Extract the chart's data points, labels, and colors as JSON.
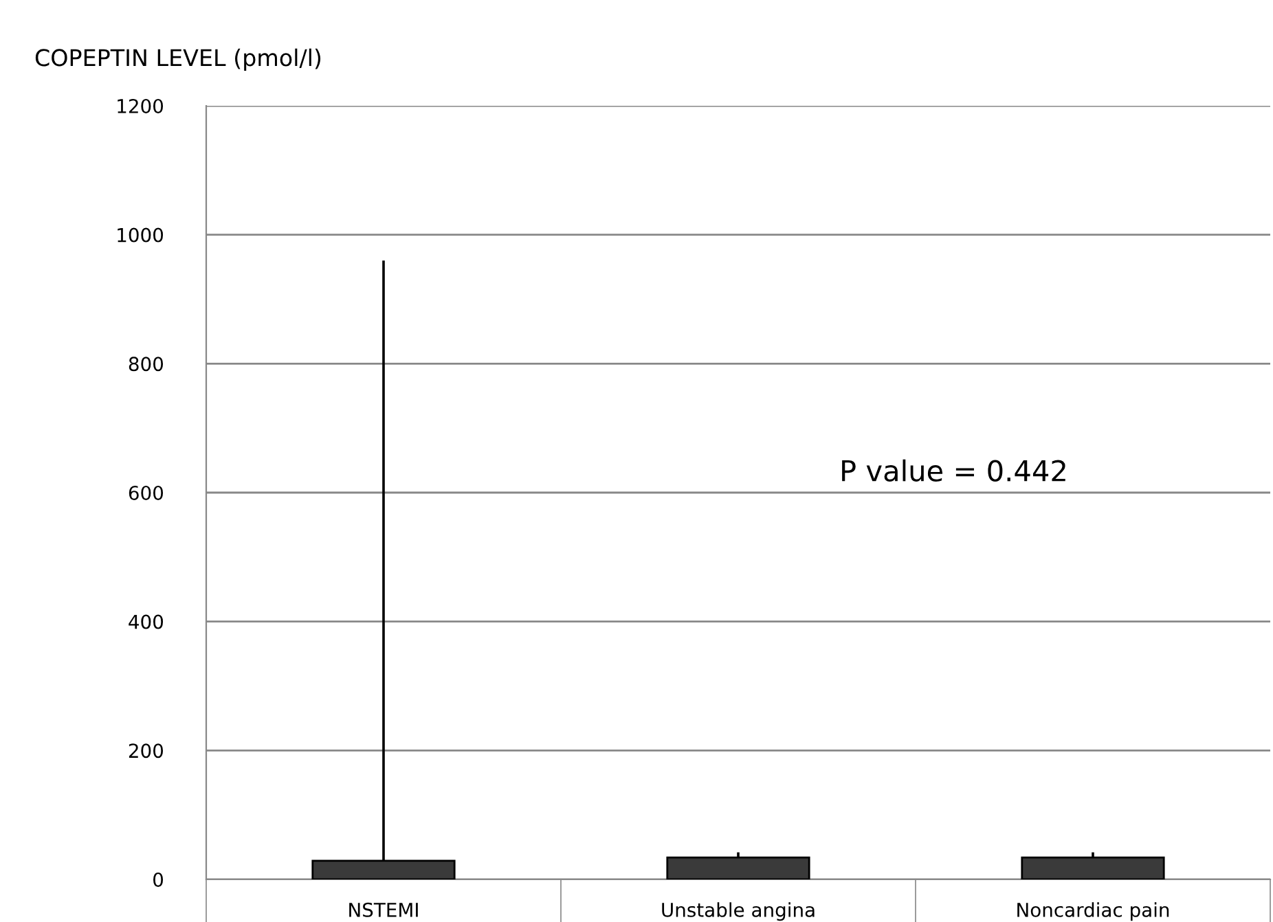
{
  "chart_data": {
    "type": "bar",
    "title": "COPEPTIN LEVEL (pmol/l)",
    "categories": [
      "NSTEMI",
      "Unstable angina",
      "Noncardiac pain"
    ],
    "values": [
      29,
      34,
      34
    ],
    "color": "#3a3a3a",
    "errors": [
      [
        29,
        960
      ],
      [
        34,
        42
      ],
      [
        34,
        42
      ]
    ],
    "ylim": [
      0,
      1200
    ],
    "yticks": [
      0,
      200,
      400,
      600,
      800,
      1000,
      1200
    ],
    "grid": "y",
    "annotations": [
      "P value = 0.442"
    ]
  }
}
